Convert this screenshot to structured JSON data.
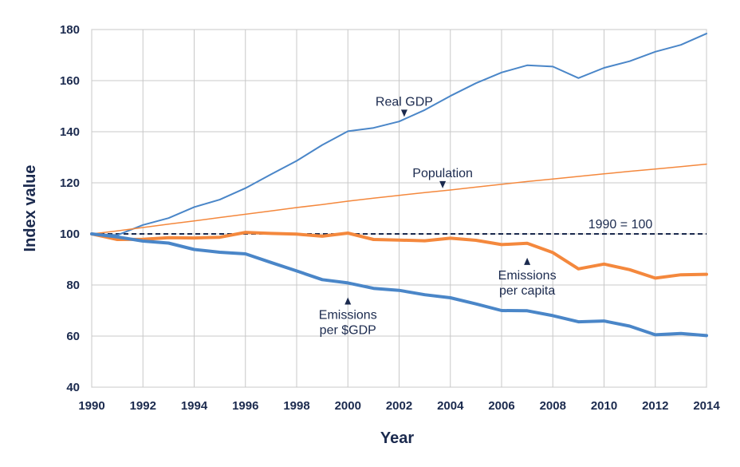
{
  "chart_data": {
    "type": "line",
    "title": "",
    "xlabel": "Year",
    "ylabel": "Index value",
    "xlim": [
      1990,
      2014
    ],
    "ylim": [
      40,
      180
    ],
    "x_ticks": [
      "1990",
      "1992",
      "1994",
      "1996",
      "1998",
      "2000",
      "2002",
      "2004",
      "2006",
      "2008",
      "2010",
      "2012",
      "2014"
    ],
    "y_ticks": [
      "40",
      "60",
      "80",
      "100",
      "120",
      "140",
      "160",
      "180"
    ],
    "grid": true,
    "x": [
      1990,
      1991,
      1992,
      1993,
      1994,
      1995,
      1996,
      1997,
      1998,
      1999,
      2000,
      2001,
      2002,
      2003,
      2004,
      2005,
      2006,
      2007,
      2008,
      2009,
      2010,
      2011,
      2012,
      2013,
      2014
    ],
    "reference_line": {
      "value": 100,
      "label": "1990 = 100",
      "color": "#1b2a4e"
    },
    "series": [
      {
        "key": "gdp",
        "color": "#4a86c8",
        "width": 2,
        "values": [
          100,
          99.5,
          103.5,
          106.2,
          110.5,
          113.4,
          117.9,
          123.3,
          128.6,
          134.8,
          140.2,
          141.5,
          144.0,
          148.5,
          154.0,
          159.0,
          163.2,
          166.0,
          165.5,
          161.0,
          165.0,
          167.6,
          171.3,
          174.0,
          178.4
        ]
      },
      {
        "key": "population",
        "color": "#f4883d",
        "width": 1.5,
        "values": [
          100,
          101.2,
          102.5,
          103.8,
          105.1,
          106.4,
          107.7,
          109.0,
          110.3,
          111.5,
          112.8,
          114.0,
          115.1,
          116.2,
          117.2,
          118.3,
          119.4,
          120.5,
          121.5,
          122.5,
          123.5,
          124.5,
          125.4,
          126.3,
          127.3
        ]
      },
      {
        "key": "emissions_per_capita",
        "color": "#f4883d",
        "width": 4,
        "values": [
          100,
          97.8,
          97.9,
          98.5,
          98.4,
          98.7,
          100.6,
          100.2,
          99.9,
          99.1,
          100.3,
          97.8,
          97.6,
          97.3,
          98.3,
          97.5,
          95.8,
          96.3,
          92.7,
          86.3,
          88.2,
          86.0,
          82.7,
          84.0,
          84.2
        ]
      },
      {
        "key": "emissions_per_gdp",
        "color": "#4a86c8",
        "width": 4,
        "values": [
          100,
          98.8,
          97.2,
          96.4,
          93.9,
          92.8,
          92.2,
          88.8,
          85.5,
          82.1,
          80.8,
          78.7,
          77.9,
          76.2,
          75.0,
          72.6,
          70.0,
          69.9,
          68.0,
          65.6,
          65.9,
          63.9,
          60.5,
          61.0,
          60.2
        ]
      }
    ],
    "annotations": [
      {
        "key": "gdp",
        "text": [
          "Real GDP"
        ],
        "x": 2002.2,
        "arrow": "down"
      },
      {
        "key": "population",
        "text": [
          "Population"
        ],
        "x": 2003.7,
        "arrow": "down"
      },
      {
        "key": "emissions_per_capita",
        "text": [
          "Emissions",
          "per capita"
        ],
        "x": 2007,
        "arrow": "up"
      },
      {
        "key": "emissions_per_gdp",
        "text": [
          "Emissions",
          "per $GDP"
        ],
        "x": 2000,
        "arrow": "up"
      }
    ]
  }
}
